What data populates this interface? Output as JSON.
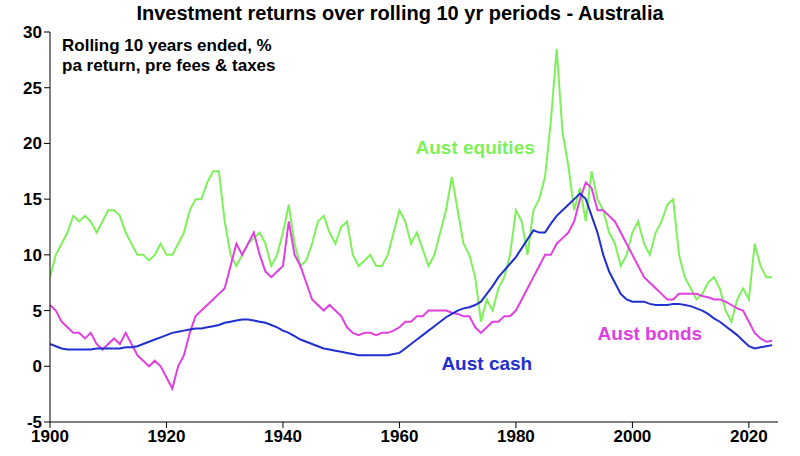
{
  "chart_data": {
    "type": "line",
    "title": "Investment returns over rolling 10 yr periods - Australia",
    "annotation": "Rolling 10 years ended, % pa return, pre fees & taxes",
    "x": [
      1900,
      1901,
      1902,
      1903,
      1904,
      1905,
      1906,
      1907,
      1908,
      1909,
      1910,
      1911,
      1912,
      1913,
      1914,
      1915,
      1916,
      1917,
      1918,
      1919,
      1920,
      1921,
      1922,
      1923,
      1924,
      1925,
      1926,
      1927,
      1928,
      1929,
      1930,
      1931,
      1932,
      1933,
      1934,
      1935,
      1936,
      1937,
      1938,
      1939,
      1940,
      1941,
      1942,
      1943,
      1944,
      1945,
      1946,
      1947,
      1948,
      1949,
      1950,
      1951,
      1952,
      1953,
      1954,
      1955,
      1956,
      1957,
      1958,
      1959,
      1960,
      1961,
      1962,
      1963,
      1964,
      1965,
      1966,
      1967,
      1968,
      1969,
      1970,
      1971,
      1972,
      1973,
      1974,
      1975,
      1976,
      1977,
      1978,
      1979,
      1980,
      1981,
      1982,
      1983,
      1984,
      1985,
      1986,
      1987,
      1988,
      1989,
      1990,
      1991,
      1992,
      1993,
      1994,
      1995,
      1996,
      1997,
      1998,
      1999,
      2000,
      2001,
      2002,
      2003,
      2004,
      2005,
      2006,
      2007,
      2008,
      2009,
      2010,
      2011,
      2012,
      2013,
      2014,
      2015,
      2016,
      2017,
      2018,
      2019,
      2020,
      2021,
      2022,
      2023,
      2024
    ],
    "series": [
      {
        "name": "Aust equities",
        "color": "#7ef05a",
        "label": {
          "x": 1973,
          "y": 19.7
        },
        "values": [
          8,
          10,
          11,
          12,
          13.5,
          13,
          13.5,
          13,
          12,
          13,
          14,
          14,
          13.5,
          12,
          11,
          10,
          10,
          9.5,
          10,
          11,
          10,
          10,
          11,
          12,
          14,
          15,
          15,
          16.5,
          17.5,
          17.5,
          13,
          10,
          9,
          10,
          11,
          11.5,
          12,
          11,
          9,
          10,
          12,
          14.5,
          11,
          9,
          9.5,
          11,
          13,
          13.5,
          12,
          11,
          12.5,
          13,
          10,
          9,
          9.5,
          10,
          9,
          9,
          10,
          12,
          14,
          13,
          11,
          12,
          10.5,
          9,
          10,
          12,
          14,
          17,
          14,
          11,
          10,
          8,
          4,
          6,
          5,
          7,
          8,
          10,
          14,
          13,
          10,
          14,
          15,
          17,
          22,
          28.5,
          21,
          18,
          14,
          16,
          13,
          17.5,
          15,
          14,
          12,
          11,
          9,
          10,
          12,
          13,
          11,
          10,
          12,
          13,
          14.5,
          15,
          10,
          8,
          7,
          6,
          6.5,
          7.5,
          8,
          7,
          5,
          4,
          6,
          7,
          6,
          11,
          9,
          8,
          8
        ]
      },
      {
        "name": "Aust bonds",
        "color": "#e040e0",
        "label": {
          "x": 2003,
          "y": 3
        },
        "values": [
          5.5,
          5,
          4,
          3.5,
          3,
          3,
          2.5,
          3,
          2,
          1.5,
          2,
          2.5,
          2,
          3,
          2,
          1,
          0.5,
          0,
          0.5,
          0,
          -1,
          -2,
          0,
          1,
          3,
          4.5,
          5,
          5.5,
          6,
          6.5,
          7,
          9,
          11,
          10,
          11,
          12,
          10,
          8.5,
          8,
          8.5,
          9,
          13,
          10,
          9,
          7.5,
          6,
          5.5,
          5,
          5.5,
          5,
          4.5,
          3.5,
          3,
          2.8,
          3,
          3,
          2.8,
          3,
          3,
          3.2,
          3.5,
          4,
          4,
          4.5,
          4.5,
          5,
          5,
          5,
          5,
          4.8,
          4.7,
          4.5,
          4.5,
          3.5,
          3,
          3.5,
          4,
          4,
          4.5,
          4.5,
          5,
          6,
          7,
          8,
          9,
          10,
          10,
          11,
          11.5,
          12,
          13,
          15,
          16.5,
          16,
          14,
          14,
          13.5,
          13,
          12,
          11,
          10,
          9,
          8,
          7.5,
          7,
          6.5,
          6,
          6,
          6.5,
          6.5,
          6.5,
          6.5,
          6.3,
          6.2,
          6,
          6,
          5.8,
          5.5,
          5.2,
          5,
          4,
          3,
          2.5,
          2.2,
          2.3
        ]
      },
      {
        "name": "Aust cash",
        "color": "#1f2fd0",
        "label": {
          "x": 1975,
          "y": 0.3
        },
        "values": [
          2,
          1.8,
          1.6,
          1.5,
          1.5,
          1.5,
          1.5,
          1.5,
          1.6,
          1.6,
          1.6,
          1.6,
          1.6,
          1.7,
          1.7,
          1.8,
          2,
          2.2,
          2.4,
          2.6,
          2.8,
          3,
          3.1,
          3.2,
          3.3,
          3.4,
          3.4,
          3.5,
          3.6,
          3.7,
          3.9,
          4,
          4.1,
          4.2,
          4.2,
          4.1,
          4,
          3.9,
          3.7,
          3.5,
          3.2,
          3,
          2.7,
          2.4,
          2.2,
          2,
          1.8,
          1.6,
          1.5,
          1.4,
          1.3,
          1.2,
          1.1,
          1,
          1,
          1,
          1,
          1,
          1,
          1.1,
          1.2,
          1.6,
          2,
          2.4,
          2.8,
          3.2,
          3.6,
          4,
          4.4,
          4.7,
          5,
          5.2,
          5.3,
          5.5,
          5.8,
          6.5,
          7.2,
          8,
          8.6,
          9.2,
          9.8,
          10.6,
          11.4,
          12.2,
          12,
          12,
          12.8,
          13.5,
          14,
          14.5,
          15,
          15.5,
          15,
          13.5,
          12,
          10,
          8.5,
          7.5,
          6.5,
          6,
          5.8,
          5.8,
          5.8,
          5.6,
          5.5,
          5.5,
          5.5,
          5.6,
          5.6,
          5.5,
          5.4,
          5.2,
          5,
          4.7,
          4.3,
          4,
          3.6,
          3.2,
          2.8,
          2.3,
          1.8,
          1.6,
          1.7,
          1.8,
          1.9
        ]
      }
    ],
    "xlim": [
      1900,
      2025
    ],
    "xticks": [
      1900,
      1920,
      1940,
      1960,
      1980,
      2000,
      2020
    ],
    "ylim": [
      -5,
      30
    ],
    "yticks": [
      -5,
      0,
      5,
      10,
      15,
      20,
      25,
      30
    ],
    "grid": false
  }
}
